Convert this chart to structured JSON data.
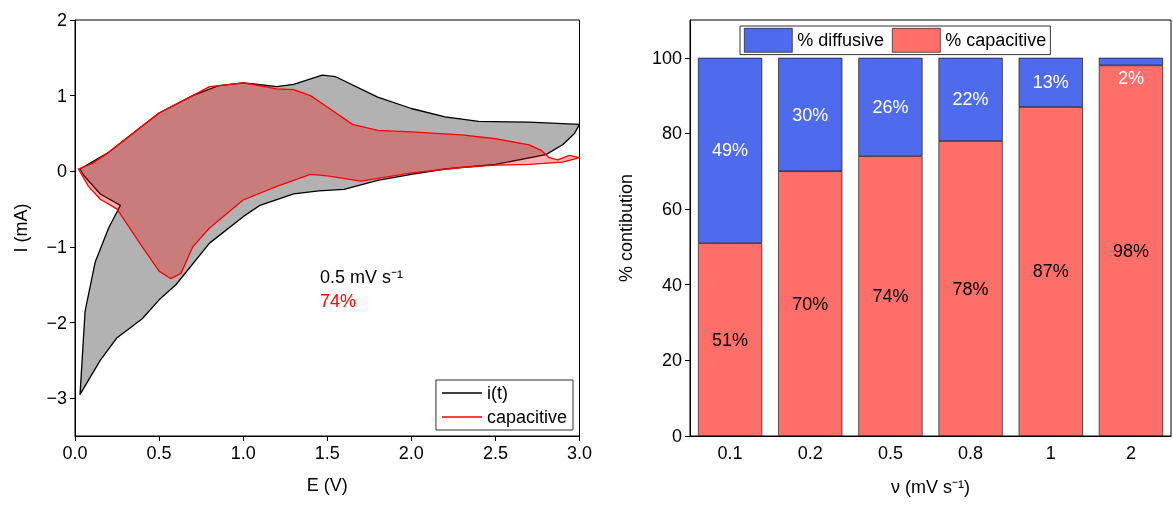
{
  "chart_data": [
    {
      "type": "area",
      "xlabel": "E (V)",
      "ylabel": "I (mA)",
      "xlim": [
        0,
        3
      ],
      "ylim": [
        -3.5,
        2
      ],
      "xticks": [
        {
          "value": 0,
          "label": "0.0"
        },
        0.5,
        {
          "value": 1,
          "label": "1.0"
        },
        1.5,
        {
          "value": 2,
          "label": "2.0"
        },
        2.5,
        {
          "value": 3,
          "label": "3.0"
        }
      ],
      "yticks": [
        {
          "value": -3,
          "label": "−3"
        },
        {
          "value": -2,
          "label": "−2"
        },
        {
          "value": -1,
          "label": "−1"
        },
        0,
        1,
        2
      ],
      "legend": "bottom right",
      "grid": false,
      "annotations": [
        "0.5 mV s⁻¹",
        "74%"
      ],
      "series": [
        {
          "name": "i(t)",
          "color": "#000000",
          "x": [
            0.03,
            0.2,
            0.4,
            0.5,
            0.7,
            0.85,
            1.0,
            1.2,
            1.3,
            1.47,
            1.55,
            1.8,
            2.0,
            2.2,
            2.4,
            2.7,
            3.0,
            2.97,
            2.9,
            2.8,
            2.5,
            2.2,
            2.0,
            1.8,
            1.6,
            1.45,
            1.3,
            1.1,
            1.0,
            0.8,
            0.6,
            0.5,
            0.4,
            0.25,
            0.15,
            0.03,
            0.06,
            0.12,
            0.2,
            0.27,
            0.15,
            0.05
          ],
          "values": [
            0.03,
            0.25,
            0.6,
            0.77,
            1.0,
            1.13,
            1.17,
            1.12,
            1.15,
            1.27,
            1.25,
            0.98,
            0.83,
            0.72,
            0.66,
            0.65,
            0.62,
            0.5,
            0.35,
            0.22,
            0.09,
            0.03,
            -0.04,
            -0.12,
            -0.24,
            -0.26,
            -0.3,
            -0.45,
            -0.6,
            -0.95,
            -1.5,
            -1.7,
            -1.95,
            -2.2,
            -2.5,
            -2.95,
            -1.85,
            -1.2,
            -0.75,
            -0.45,
            -0.3,
            -0.05
          ]
        },
        {
          "name": "capacitive",
          "color": "#ff0000",
          "x": [
            0.02,
            0.1,
            0.2,
            0.4,
            0.5,
            0.7,
            0.8,
            1.0,
            1.2,
            1.3,
            1.4,
            1.5,
            1.65,
            1.8,
            2.0,
            2.3,
            2.5,
            2.7,
            2.77,
            2.82,
            2.87,
            2.94,
            3.0,
            2.9,
            2.7,
            2.5,
            2.3,
            2.0,
            1.7,
            1.5,
            1.4,
            1.2,
            1.0,
            0.8,
            0.7,
            0.63,
            0.57,
            0.5,
            0.4,
            0.25,
            0.15,
            0.08
          ],
          "values": [
            0.03,
            0.1,
            0.25,
            0.6,
            0.77,
            1.0,
            1.12,
            1.17,
            1.09,
            1.08,
            1.0,
            0.85,
            0.62,
            0.54,
            0.52,
            0.48,
            0.43,
            0.35,
            0.28,
            0.18,
            0.15,
            0.21,
            0.18,
            0.12,
            0.09,
            0.08,
            0.05,
            -0.02,
            -0.13,
            -0.06,
            -0.04,
            -0.2,
            -0.38,
            -0.75,
            -1.0,
            -1.35,
            -1.42,
            -1.32,
            -1.0,
            -0.5,
            -0.37,
            -0.2
          ]
        }
      ]
    },
    {
      "type": "bar",
      "stacked": true,
      "xlabel": "ν (mV s⁻¹)",
      "ylabel": "% contibution",
      "ylim": [
        0,
        110
      ],
      "yticks": [
        0,
        20,
        40,
        60,
        80,
        100
      ],
      "legend": "top",
      "grid": false,
      "categories": [
        "0.1",
        "0.2",
        "0.5",
        "0.8",
        "1",
        "2"
      ],
      "series": [
        {
          "name": "% capacitive",
          "color": "#ff6f6a",
          "values": [
            51,
            70,
            74,
            78,
            87,
            98
          ],
          "value_labels": [
            "51%",
            "70%",
            "74%",
            "78%",
            "87%",
            "98%"
          ]
        },
        {
          "name": "% diffusive",
          "color": "#4f6bed",
          "values": [
            49,
            30,
            26,
            22,
            13,
            2
          ],
          "value_labels": [
            "49%",
            "30%",
            "26%",
            "22%",
            "13%",
            "2%"
          ]
        }
      ]
    }
  ]
}
